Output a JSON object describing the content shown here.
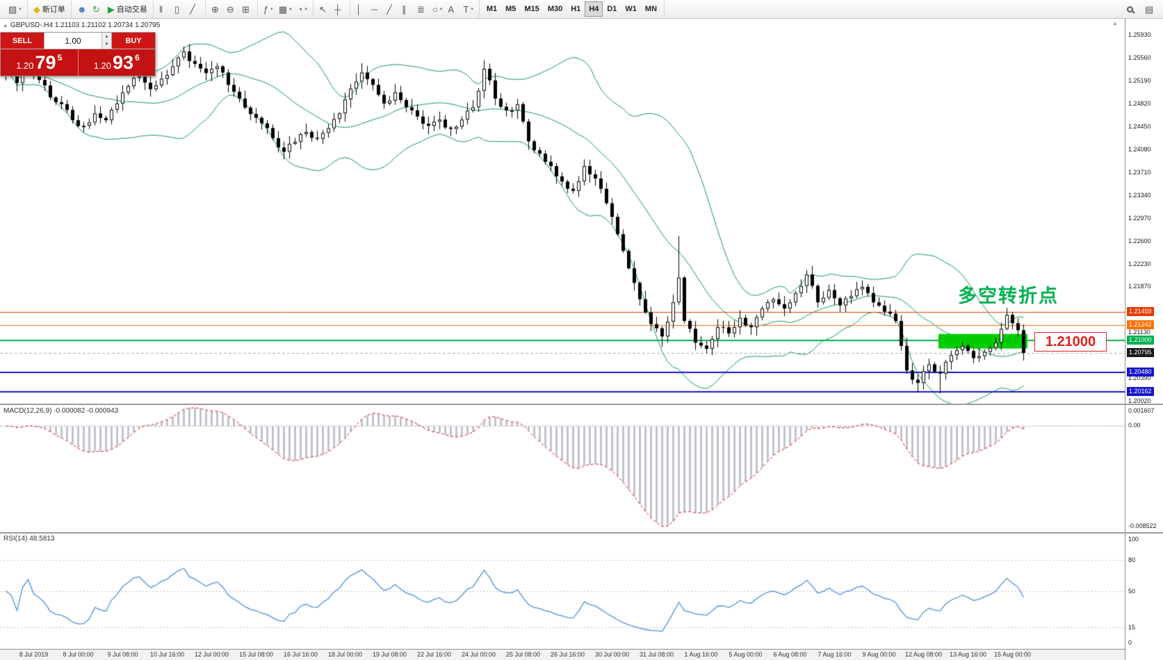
{
  "toolbar": {
    "groups": [
      {
        "name": "file",
        "items": [
          {
            "name": "new-chart-button",
            "glyph": "▧",
            "dropdown": true
          }
        ]
      },
      {
        "name": "order",
        "items": [
          {
            "name": "new-order-button",
            "glyph": "◆",
            "glyph_color": "#e8b400",
            "label": "新订单"
          }
        ]
      },
      {
        "name": "experts",
        "items": [
          {
            "name": "expert-advisors-button",
            "glyph": "☻",
            "glyph_color": "#4a7ab5"
          },
          {
            "name": "scripts-button",
            "glyph": "↻",
            "glyph_color": "#3f9e4f"
          },
          {
            "name": "autotrading-button",
            "glyph": "▶",
            "glyph_color": "#18a832",
            "label": "自动交易"
          }
        ]
      },
      {
        "name": "chart-type",
        "items": [
          {
            "name": "bar-chart-button",
            "glyph": "‖"
          },
          {
            "name": "candlestick-chart-button",
            "glyph": "▯"
          },
          {
            "name": "line-chart-button",
            "glyph": "╱"
          }
        ]
      },
      {
        "name": "zoom",
        "items": [
          {
            "name": "zoom-in-button",
            "glyph": "⊕"
          },
          {
            "name": "zoom-out-button",
            "glyph": "⊖"
          },
          {
            "name": "tile-windows-button",
            "glyph": "⊞"
          }
        ]
      },
      {
        "name": "tools",
        "items": [
          {
            "name": "indicators-button",
            "glyph": "ƒ",
            "dropdown": true
          },
          {
            "name": "objects-list-button",
            "glyph": "▦",
            "dropdown": true
          },
          {
            "name": "period-settings-button",
            "glyph": "◔",
            "dropdown": true
          }
        ]
      },
      {
        "name": "cursor",
        "items": [
          {
            "name": "cursor-button",
            "glyph": "↖"
          },
          {
            "name": "crosshair-button",
            "glyph": "┼"
          }
        ]
      },
      {
        "name": "draw",
        "items": [
          {
            "name": "vertical-line-button",
            "glyph": "│"
          },
          {
            "name": "horizontal-line-button",
            "glyph": "─"
          },
          {
            "name": "trendline-button",
            "glyph": "╱"
          },
          {
            "name": "channel-button",
            "glyph": "∥"
          },
          {
            "name": "fibonacci-button",
            "glyph": "≣"
          },
          {
            "name": "shapes-button",
            "glyph": "○",
            "dropdown": true
          },
          {
            "name": "text-button",
            "glyph": "A"
          },
          {
            "name": "label-button",
            "glyph": "T",
            "dropdown": true
          }
        ]
      },
      {
        "name": "timeframes",
        "items": [
          {
            "name": "tf-m1-button",
            "label": "M1"
          },
          {
            "name": "tf-m5-button",
            "label": "M5"
          },
          {
            "name": "tf-m15-button",
            "label": "M15"
          },
          {
            "name": "tf-m30-button",
            "label": "M30"
          },
          {
            "name": "tf-h1-button",
            "label": "H1"
          },
          {
            "name": "tf-h4-button",
            "label": "H4",
            "active": true
          },
          {
            "name": "tf-d1-button",
            "label": "D1"
          },
          {
            "name": "tf-w1-button",
            "label": "W1"
          },
          {
            "name": "tf-mn-button",
            "label": "MN"
          }
        ]
      }
    ]
  },
  "trade_panel": {
    "sell_label": "SELL",
    "buy_label": "BUY",
    "volume": "1.00",
    "sell_price_small": "1.20",
    "sell_price_big": "79",
    "sell_price_sup": "5",
    "buy_price_small": "1.20",
    "buy_price_big": "93",
    "buy_price_sup": "6"
  },
  "chart": {
    "title": "GBPUSD-.H4  1.21103 1.21102 1.20734 1.20795",
    "annotation": "多空转折点",
    "callout": "1.21000",
    "current_price": 1.20795,
    "price_ticks": [
      "1.25930",
      "1.25560",
      "1.25190",
      "1.24820",
      "1.24450",
      "1.24080",
      "1.23710",
      "1.23340",
      "1.22970",
      "1.22600",
      "1.22230",
      "1.21870",
      "1.21130",
      "1.20390",
      "1.20020"
    ],
    "price_badges": [
      {
        "value": "1.21459",
        "bg": "#e63b00"
      },
      {
        "value": "1.21242",
        "bg": "#ff7000"
      },
      {
        "value": "1.21000",
        "bg": "#00b050"
      },
      {
        "value": "1.20795",
        "bg": "#1a1a1a",
        "current": true
      },
      {
        "value": "1.20480",
        "bg": "#1515cc"
      },
      {
        "value": "1.20162",
        "bg": "#1515cc"
      }
    ],
    "h_lines": [
      {
        "price": 1.21459,
        "color": "#e63b00",
        "width": 1
      },
      {
        "price": 1.21242,
        "color": "#ff7000",
        "width": 1
      },
      {
        "price": 1.21,
        "color": "#00b050",
        "width": 2
      },
      {
        "price": 1.2048,
        "color": "#1515cc",
        "width": 2
      },
      {
        "price": 1.20162,
        "color": "#1515cc",
        "width": 2
      }
    ],
    "highlight_zone": {
      "from_index": 168,
      "to_index": 184,
      "price_top": 1.211,
      "price_bottom": 1.20865,
      "color": "#00cc00"
    }
  },
  "colors": {
    "bollinger": "#0a9b55",
    "macd_hist": "#c2c2ce",
    "macd_signal": "#e02020",
    "rsi": "#4a90d9",
    "candle_up": "#ffffff",
    "candle_down": "#000000",
    "candle_outline": "#000000",
    "level_dotted": "#bbbbbb"
  },
  "chart_data": {
    "type": "candlestick",
    "symbol": "GBPUSD-",
    "timeframe": "H4",
    "candle_count": 184,
    "close_anchors": [
      [
        0,
        1.253
      ],
      [
        2,
        1.2515
      ],
      [
        4,
        1.2542
      ],
      [
        6,
        1.252
      ],
      [
        8,
        1.2492
      ],
      [
        10,
        1.2481
      ],
      [
        12,
        1.2455
      ],
      [
        14,
        1.2446
      ],
      [
        16,
        1.2466
      ],
      [
        18,
        1.2455
      ],
      [
        20,
        1.2482
      ],
      [
        22,
        1.251
      ],
      [
        24,
        1.2526
      ],
      [
        26,
        1.2505
      ],
      [
        28,
        1.2522
      ],
      [
        30,
        1.2542
      ],
      [
        32,
        1.2566
      ],
      [
        34,
        1.2546
      ],
      [
        36,
        1.2531
      ],
      [
        38,
        1.2542
      ],
      [
        40,
        1.2512
      ],
      [
        42,
        1.249
      ],
      [
        44,
        1.2465
      ],
      [
        46,
        1.245
      ],
      [
        48,
        1.2426
      ],
      [
        50,
        1.2404
      ],
      [
        52,
        1.242
      ],
      [
        54,
        1.2436
      ],
      [
        56,
        1.2425
      ],
      [
        58,
        1.2442
      ],
      [
        60,
        1.2466
      ],
      [
        62,
        1.2506
      ],
      [
        64,
        1.2532
      ],
      [
        66,
        1.2512
      ],
      [
        68,
        1.2482
      ],
      [
        70,
        1.25
      ],
      [
        72,
        1.2476
      ],
      [
        74,
        1.2461
      ],
      [
        76,
        1.2446
      ],
      [
        78,
        1.2456
      ],
      [
        80,
        1.2441
      ],
      [
        82,
        1.2456
      ],
      [
        84,
        1.2476
      ],
      [
        86,
        1.2538
      ],
      [
        88,
        1.249
      ],
      [
        90,
        1.2471
      ],
      [
        92,
        1.2481
      ],
      [
        94,
        1.2421
      ],
      [
        96,
        1.2401
      ],
      [
        98,
        1.2381
      ],
      [
        100,
        1.2356
      ],
      [
        102,
        1.2341
      ],
      [
        104,
        1.2381
      ],
      [
        106,
        1.2361
      ],
      [
        108,
        1.2321
      ],
      [
        110,
        1.2271
      ],
      [
        112,
        1.2216
      ],
      [
        114,
        1.2166
      ],
      [
        116,
        1.2126
      ],
      [
        118,
        1.2106
      ],
      [
        120,
        1.2161
      ],
      [
        121,
        1.2201
      ],
      [
        122,
        1.2131
      ],
      [
        124,
        1.2096
      ],
      [
        126,
        1.2086
      ],
      [
        128,
        1.2121
      ],
      [
        130,
        1.2111
      ],
      [
        132,
        1.2136
      ],
      [
        134,
        1.2121
      ],
      [
        136,
        1.2151
      ],
      [
        138,
        1.2166
      ],
      [
        140,
        1.2151
      ],
      [
        142,
        1.2176
      ],
      [
        144,
        1.2206
      ],
      [
        146,
        1.2161
      ],
      [
        148,
        1.2181
      ],
      [
        150,
        1.2156
      ],
      [
        152,
        1.2171
      ],
      [
        154,
        1.2186
      ],
      [
        156,
        1.2161
      ],
      [
        158,
        1.2146
      ],
      [
        160,
        1.2131
      ],
      [
        162,
        1.2051
      ],
      [
        164,
        1.2031
      ],
      [
        166,
        1.2061
      ],
      [
        168,
        1.2046
      ],
      [
        170,
        1.2076
      ],
      [
        172,
        1.2091
      ],
      [
        174,
        1.2071
      ],
      [
        176,
        1.2081
      ],
      [
        178,
        1.2096
      ],
      [
        180,
        1.2141
      ],
      [
        182,
        1.2116
      ],
      [
        183,
        1.20795
      ]
    ],
    "wick_overrides": [
      {
        "index": 32,
        "high": 1.2572
      },
      {
        "index": 64,
        "high": 1.2547
      },
      {
        "index": 86,
        "high": 1.2552
      },
      {
        "index": 121,
        "high": 1.2268
      },
      {
        "index": 144,
        "high": 1.2212
      },
      {
        "index": 180,
        "high": 1.2149
      },
      {
        "index": 50,
        "low": 1.2392
      },
      {
        "index": 118,
        "low": 1.2089
      },
      {
        "index": 126,
        "low": 1.2079
      },
      {
        "index": 164,
        "low": 1.2016
      },
      {
        "index": 168,
        "low": 1.2014
      }
    ],
    "indicators": {
      "bollinger": {
        "period": 20,
        "deviation": 2
      },
      "macd": {
        "label": "MACD(12,26,9)",
        "values_label": "-0.000082 -0.000943",
        "scale": [
          "0.001607",
          "0.00",
          "-0.008522"
        ]
      },
      "rsi": {
        "label": "RSI(14)",
        "value_label": "48.5813",
        "scale": [
          "100",
          "80",
          "50",
          "15",
          "0"
        ],
        "levels": [
          80,
          50,
          15
        ]
      }
    },
    "time_labels": [
      "8 Jul 2019",
      "8 Jul 00:00",
      "9 Jul 08:00",
      "10 Jul 16:00",
      "12 Jul 00:00",
      "15 Jul 08:00",
      "16 Jul 16:00",
      "18 Jul 00:00",
      "19 Jul 08:00",
      "22 Jul 16:00",
      "24 Jul 00:00",
      "25 Jul 08:00",
      "26 Jul 16:00",
      "30 Jul 00:00",
      "31 Jul 08:00",
      "1 Aug 16:00",
      "5 Aug 00:00",
      "6 Aug 08:00",
      "7 Aug 16:00",
      "9 Aug 00:00",
      "12 Aug 08:00",
      "13 Aug 16:00",
      "15 Aug 00:00"
    ]
  }
}
